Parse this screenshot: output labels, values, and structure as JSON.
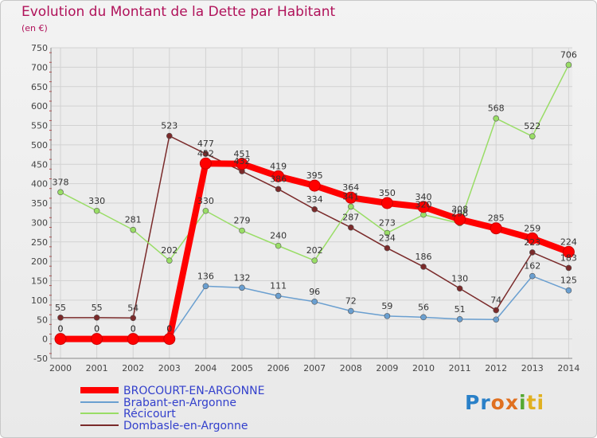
{
  "chart_data": {
    "type": "line",
    "title": "Evolution du Montant de la Dette par Habitant",
    "unit_label": "(en €)",
    "xlabel": "",
    "ylabel": "",
    "ylim": [
      -50,
      750
    ],
    "y_ticks": [
      "-50",
      "0",
      "50",
      "100",
      "150",
      "200",
      "250",
      "300",
      "350",
      "400",
      "450",
      "500",
      "550",
      "600",
      "650",
      "700",
      "750"
    ],
    "categories": [
      "2000",
      "2001",
      "2002",
      "2003",
      "2004",
      "2005",
      "2006",
      "2007",
      "2008",
      "2009",
      "2010",
      "2011",
      "2012",
      "2013",
      "2014"
    ],
    "grid": true,
    "legend_position": "bottom-left",
    "series": [
      {
        "name": "BROCOURT-EN-ARGONNE",
        "color": "#ff0000",
        "values": [
          0,
          0,
          0,
          0,
          452,
          451,
          419,
          395,
          364,
          350,
          340,
          308,
          285,
          259,
          224
        ],
        "labels": [
          "0",
          "0",
          "0",
          "0",
          "452",
          "451",
          "419",
          "395",
          "364",
          "350",
          "340",
          "308",
          "285",
          "259",
          "224"
        ]
      },
      {
        "name": "Brabant-en-Argonne",
        "color": "#6a9fd0",
        "values": [
          0,
          0,
          0,
          0,
          136,
          132,
          111,
          96,
          72,
          59,
          56,
          51,
          50,
          162,
          125
        ],
        "labels": [
          "0",
          "0",
          "0",
          "0",
          "136",
          "132",
          "111",
          "96",
          "72",
          "59",
          "56",
          "51",
          "",
          "162",
          "125"
        ]
      },
      {
        "name": "Récicourt",
        "color": "#99dd66",
        "values": [
          378,
          330,
          281,
          202,
          330,
          279,
          240,
          202,
          341,
          273,
          320,
          298,
          568,
          522,
          706
        ],
        "labels": [
          "378",
          "330",
          "281",
          "202",
          "330",
          "279",
          "240",
          "202",
          "341",
          "273",
          "320",
          "298",
          "568",
          "522",
          "706"
        ]
      },
      {
        "name": "Dombasle-en-Argonne",
        "color": "#7a2a2a",
        "values": [
          55,
          55,
          54,
          523,
          477,
          432,
          386,
          334,
          287,
          234,
          186,
          130,
          74,
          223,
          183
        ],
        "labels": [
          "55",
          "55",
          "54",
          "523",
          "477",
          "432",
          "386",
          "334",
          "287",
          "234",
          "186",
          "130",
          "74",
          "223",
          "183"
        ]
      }
    ]
  },
  "logo": {
    "part1": "Pr",
    "part2": "ox",
    "part3": "i",
    "part4": "ti"
  }
}
